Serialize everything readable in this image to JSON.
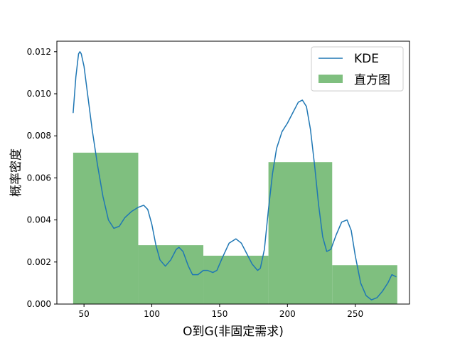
{
  "chart_data": {
    "type": "bar",
    "xlabel": "O到G(非固定需求)",
    "ylabel": "概率密度",
    "xlim": [
      30,
      290
    ],
    "ylim": [
      0,
      0.0125
    ],
    "x_ticks": [
      50,
      100,
      150,
      200,
      250
    ],
    "x_tick_labels": [
      "50",
      "100",
      "150",
      "200",
      "250"
    ],
    "y_ticks": [
      0,
      0.002,
      0.004,
      0.006,
      0.008,
      0.01,
      0.012
    ],
    "y_tick_labels": [
      "0.000",
      "0.002",
      "0.004",
      "0.006",
      "0.008",
      "0.010",
      "0.012"
    ],
    "grid": false,
    "legend_position": "top-right",
    "series": [
      {
        "name": "直方图",
        "kind": "histogram",
        "color": "#7fbf7f",
        "bins": [
          {
            "x0": 42,
            "x1": 90,
            "value": 0.0072
          },
          {
            "x0": 90,
            "x1": 138,
            "value": 0.0028
          },
          {
            "x0": 138,
            "x1": 186,
            "value": 0.0023
          },
          {
            "x0": 186,
            "x1": 233,
            "value": 0.00675
          },
          {
            "x0": 233,
            "x1": 281,
            "value": 0.00185
          }
        ]
      },
      {
        "name": "KDE",
        "kind": "line",
        "color": "#1f77b4",
        "points": [
          [
            42,
            0.0091
          ],
          [
            44,
            0.0108
          ],
          [
            46,
            0.0119
          ],
          [
            47,
            0.012
          ],
          [
            48,
            0.0119
          ],
          [
            50,
            0.0113
          ],
          [
            53,
            0.0098
          ],
          [
            56,
            0.0083
          ],
          [
            60,
            0.0066
          ],
          [
            64,
            0.0051
          ],
          [
            68,
            0.004
          ],
          [
            72,
            0.0036
          ],
          [
            76,
            0.0037
          ],
          [
            80,
            0.0041
          ],
          [
            85,
            0.0044
          ],
          [
            90,
            0.0046
          ],
          [
            94,
            0.0047
          ],
          [
            97,
            0.0045
          ],
          [
            100,
            0.0038
          ],
          [
            103,
            0.0028
          ],
          [
            106,
            0.0021
          ],
          [
            110,
            0.0018
          ],
          [
            114,
            0.0021
          ],
          [
            118,
            0.0026
          ],
          [
            120,
            0.0027
          ],
          [
            123,
            0.0025
          ],
          [
            127,
            0.0018
          ],
          [
            130,
            0.0014
          ],
          [
            134,
            0.0014
          ],
          [
            138,
            0.0016
          ],
          [
            141,
            0.0016
          ],
          [
            145,
            0.0015
          ],
          [
            148,
            0.0016
          ],
          [
            152,
            0.0022
          ],
          [
            157,
            0.0029
          ],
          [
            162,
            0.0031
          ],
          [
            166,
            0.0029
          ],
          [
            170,
            0.0024
          ],
          [
            174,
            0.0019
          ],
          [
            178,
            0.0016
          ],
          [
            180,
            0.0017
          ],
          [
            183,
            0.0026
          ],
          [
            186,
            0.0045
          ],
          [
            189,
            0.0062
          ],
          [
            192,
            0.0074
          ],
          [
            196,
            0.0082
          ],
          [
            200,
            0.0086
          ],
          [
            204,
            0.0091
          ],
          [
            208,
            0.0096
          ],
          [
            211,
            0.0097
          ],
          [
            214,
            0.0094
          ],
          [
            217,
            0.0083
          ],
          [
            220,
            0.0066
          ],
          [
            223,
            0.0047
          ],
          [
            226,
            0.0032
          ],
          [
            229,
            0.0025
          ],
          [
            232,
            0.0026
          ],
          [
            236,
            0.0033
          ],
          [
            240,
            0.0039
          ],
          [
            244,
            0.004
          ],
          [
            247,
            0.0035
          ],
          [
            250,
            0.0023
          ],
          [
            254,
            0.001
          ],
          [
            258,
            0.0004
          ],
          [
            262,
            0.0002
          ],
          [
            266,
            0.0003
          ],
          [
            270,
            0.0006
          ],
          [
            274,
            0.001
          ],
          [
            277,
            0.0014
          ],
          [
            280,
            0.0013
          ]
        ]
      }
    ]
  }
}
